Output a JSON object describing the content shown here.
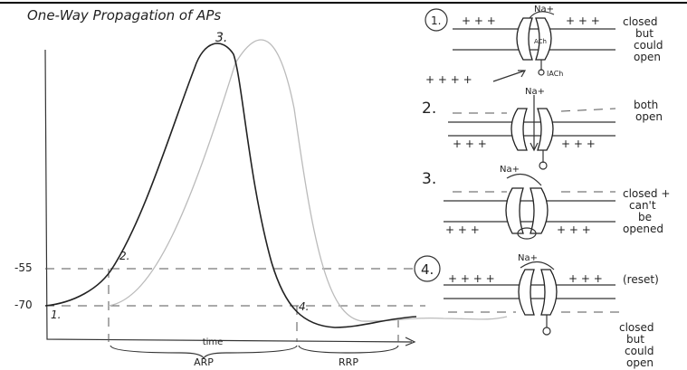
{
  "title": "One-Way Propagation of APs",
  "graph": {
    "y_labels": [
      "-55",
      "-70"
    ],
    "point_labels": [
      "1.",
      "2.",
      "3.",
      "4."
    ],
    "x_label": "time",
    "periods": [
      "ARP",
      "RRP"
    ]
  },
  "panels": [
    {
      "number": "1.",
      "ion": "Na+",
      "state": [
        "closed",
        "but",
        "could",
        "open"
      ],
      "charges": [
        "+ + +",
        "+ + +",
        "+ + + +"
      ],
      "binding": [
        "ACh",
        "IACh"
      ]
    },
    {
      "number": "2.",
      "ion": "Na+",
      "state": [
        "both",
        "open"
      ],
      "charges": [
        "+ + +",
        "+ + +"
      ]
    },
    {
      "number": "3.",
      "ion": "Na+",
      "state": [
        "closed +",
        "can't",
        "be",
        "opened"
      ],
      "charges": [
        "+ + +",
        "+ + +"
      ]
    },
    {
      "number": "4.",
      "ion": "Na+",
      "state": [
        "(reset)",
        "closed",
        "but",
        "could",
        "open"
      ],
      "charges": [
        "+ + + +",
        "+ + +"
      ]
    }
  ]
}
